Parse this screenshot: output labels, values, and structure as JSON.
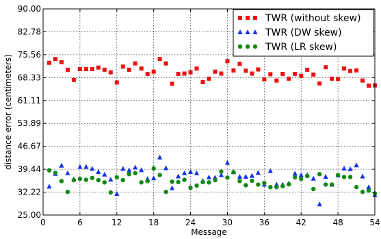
{
  "chart_data": {
    "type": "scatter",
    "xlabel": "Message",
    "ylabel": "distance error (centimeters)",
    "xlim": [
      0,
      54
    ],
    "ylim": [
      25.0,
      90.0
    ],
    "x_ticks": [
      "0",
      "6",
      "12",
      "18",
      "24",
      "30",
      "36",
      "42",
      "48",
      "54"
    ],
    "y_ticks": [
      "25.00",
      "32.22",
      "39.44",
      "46.67",
      "53.89",
      "61.11",
      "68.33",
      "75.56",
      "82.78",
      "90.00"
    ],
    "grid": true,
    "legend_position": "top-right",
    "series": [
      {
        "name": "TWR (without skew)",
        "marker": "square",
        "color": "#ee1111",
        "x": [
          1,
          2,
          3,
          4,
          5,
          6,
          7,
          8,
          9,
          10,
          11,
          12,
          13,
          14,
          15,
          16,
          17,
          18,
          19,
          20,
          21,
          22,
          23,
          24,
          25,
          26,
          27,
          28,
          29,
          30,
          31,
          32,
          33,
          34,
          35,
          36,
          37,
          38,
          39,
          40,
          41,
          42,
          43,
          44,
          45,
          46,
          47,
          48,
          49,
          50,
          51,
          52,
          53,
          54
        ],
        "y": [
          73.0,
          74.2,
          73.2,
          70.8,
          67.6,
          71.0,
          71.0,
          71.0,
          71.5,
          70.8,
          70.0,
          66.8,
          71.8,
          70.8,
          72.8,
          71.2,
          69.5,
          70.2,
          74.2,
          72.8,
          66.4,
          69.5,
          69.6,
          70.0,
          71.2,
          66.9,
          68.0,
          70.2,
          69.6,
          73.5,
          70.6,
          72.7,
          70.5,
          69.6,
          70.9,
          67.8,
          69.4,
          67.4,
          69.5,
          68.0,
          69.5,
          68.9,
          70.8,
          69.3,
          66.5,
          71.6,
          68.0,
          67.9,
          71.2,
          70.4,
          70.6,
          67.4,
          65.8,
          65.9
        ]
      },
      {
        "name": "TWR (DW skew)",
        "marker": "triangle",
        "color": "#1133ee",
        "x": [
          1,
          2,
          3,
          4,
          5,
          6,
          7,
          8,
          9,
          10,
          11,
          12,
          13,
          14,
          15,
          16,
          17,
          18,
          19,
          20,
          21,
          22,
          23,
          24,
          25,
          26,
          27,
          28,
          29,
          30,
          31,
          32,
          33,
          34,
          35,
          36,
          37,
          38,
          39,
          40,
          41,
          42,
          43,
          44,
          45,
          46,
          47,
          48,
          49,
          50,
          51,
          52,
          53,
          54
        ],
        "y": [
          34.0,
          38.0,
          40.6,
          38.2,
          36.3,
          40.2,
          40.2,
          39.6,
          38.6,
          37.8,
          36.2,
          31.7,
          39.6,
          39.1,
          40.0,
          39.2,
          36.4,
          36.6,
          43.2,
          39.8,
          33.5,
          37.2,
          38.2,
          38.6,
          38.2,
          35.8,
          36.9,
          36.8,
          37.6,
          41.5,
          38.6,
          37.1,
          37.1,
          37.4,
          38.3,
          34.6,
          38.9,
          34.6,
          34.6,
          35.0,
          38.1,
          37.6,
          37.6,
          36.5,
          28.4,
          37.1,
          34.6,
          37.5,
          39.7,
          39.5,
          40.7,
          37.2,
          33.8,
          31.3
        ]
      },
      {
        "name": "TWR (LR skew)",
        "marker": "circle",
        "color": "#118811",
        "x": [
          1,
          2,
          3,
          4,
          5,
          6,
          7,
          8,
          9,
          10,
          11,
          12,
          13,
          14,
          15,
          16,
          17,
          18,
          19,
          20,
          21,
          22,
          23,
          24,
          25,
          26,
          27,
          28,
          29,
          30,
          31,
          32,
          33,
          34,
          35,
          36,
          37,
          38,
          39,
          40,
          41,
          42,
          43,
          44,
          45,
          46,
          47,
          48,
          49,
          50,
          51,
          52,
          53,
          54
        ],
        "y": [
          39.1,
          38.3,
          35.7,
          32.3,
          36.0,
          36.4,
          36.1,
          36.7,
          36.0,
          35.3,
          32.1,
          36.9,
          36.0,
          37.9,
          38.2,
          35.3,
          35.7,
          39.7,
          37.6,
          32.3,
          35.5,
          35.4,
          36.1,
          33.6,
          34.3,
          35.4,
          35.3,
          36.0,
          38.7,
          36.8,
          38.5,
          35.7,
          34.4,
          35.8,
          34.6,
          35.1,
          33.8,
          33.8,
          34.1,
          34.7,
          36.9,
          36.4,
          37.3,
          33.2,
          37.9,
          34.6,
          34.6,
          37.6,
          37.0,
          37.0,
          33.8,
          32.3,
          32.7,
          31.8
        ]
      }
    ]
  }
}
